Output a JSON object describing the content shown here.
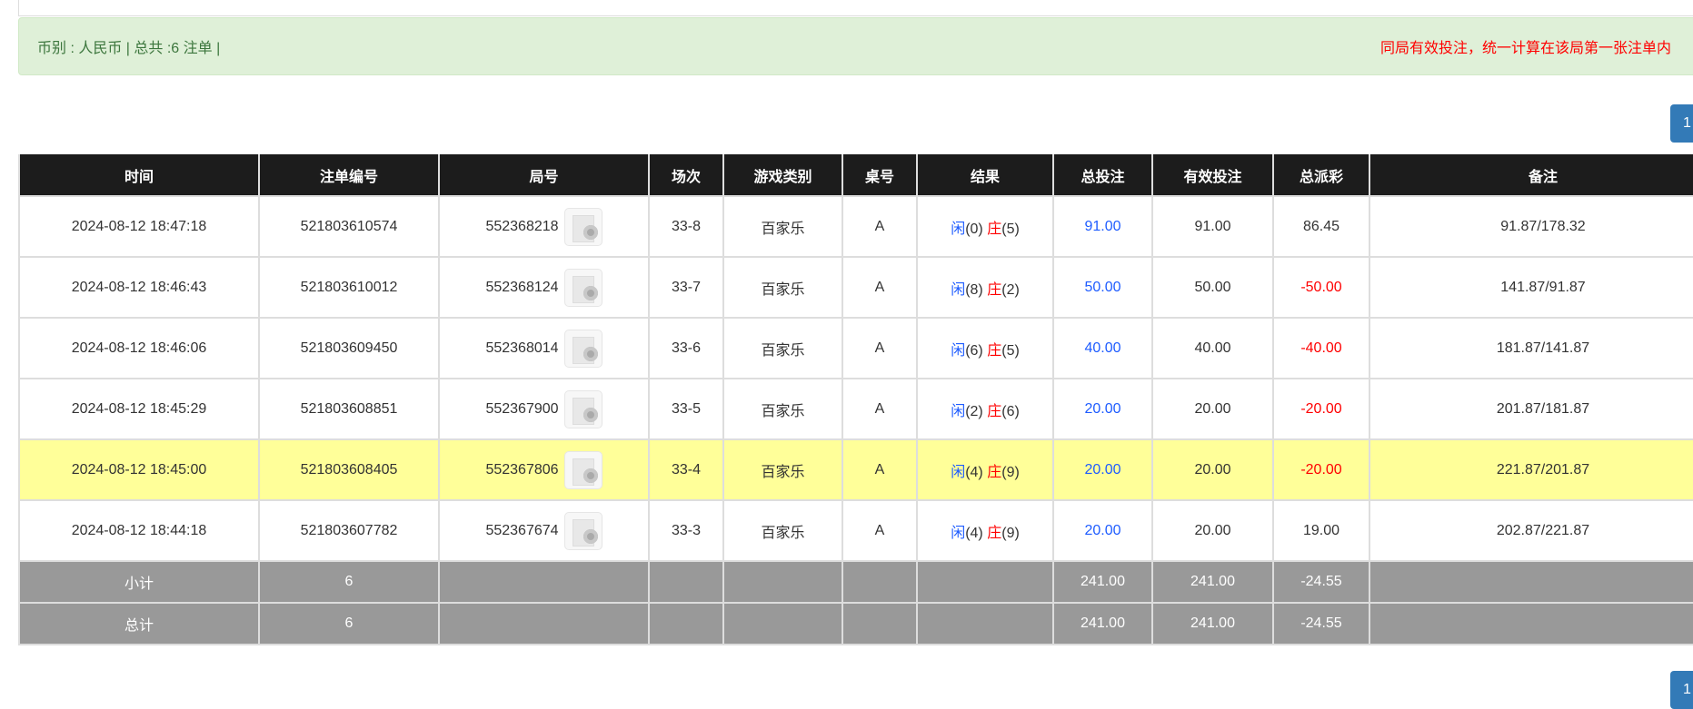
{
  "summary": {
    "left": "币别 : 人民币 | 总共 :6 注单 |",
    "right": "同局有效投注，统一计算在该局第一张注单内"
  },
  "pagination": {
    "page": "1"
  },
  "colors": {
    "blue": "#1e5cff",
    "red": "#ff0000",
    "highlight": "#ffff99",
    "header": "#1c1c1c",
    "summary_row": "#999999"
  },
  "table": {
    "headers": [
      "时间",
      "注单编号",
      "局号",
      "场次",
      "游戏类别",
      "桌号",
      "结果",
      "总投注",
      "有效投注",
      "总派彩",
      "备注"
    ],
    "rows": [
      {
        "time": "2024-08-12 18:47:18",
        "bet_id": "521803610574",
        "round": "552368218",
        "session": "33-8",
        "game": "百家乐",
        "table": "A",
        "player": "闲",
        "player_score": "(0)",
        "banker": "庄",
        "banker_score": "(5)",
        "total_bet": "91.00",
        "valid_bet": "91.00",
        "payout": "86.45",
        "payout_negative": false,
        "note": "91.87/178.32",
        "highlight": false
      },
      {
        "time": "2024-08-12 18:46:43",
        "bet_id": "521803610012",
        "round": "552368124",
        "session": "33-7",
        "game": "百家乐",
        "table": "A",
        "player": "闲",
        "player_score": "(8)",
        "banker": "庄",
        "banker_score": "(2)",
        "total_bet": "50.00",
        "valid_bet": "50.00",
        "payout": "-50.00",
        "payout_negative": true,
        "note": "141.87/91.87",
        "highlight": false
      },
      {
        "time": "2024-08-12 18:46:06",
        "bet_id": "521803609450",
        "round": "552368014",
        "session": "33-6",
        "game": "百家乐",
        "table": "A",
        "player": "闲",
        "player_score": "(6)",
        "banker": "庄",
        "banker_score": "(5)",
        "total_bet": "40.00",
        "valid_bet": "40.00",
        "payout": "-40.00",
        "payout_negative": true,
        "note": "181.87/141.87",
        "highlight": false
      },
      {
        "time": "2024-08-12 18:45:29",
        "bet_id": "521803608851",
        "round": "552367900",
        "session": "33-5",
        "game": "百家乐",
        "table": "A",
        "player": "闲",
        "player_score": "(2)",
        "banker": "庄",
        "banker_score": "(6)",
        "total_bet": "20.00",
        "valid_bet": "20.00",
        "payout": "-20.00",
        "payout_negative": true,
        "note": "201.87/181.87",
        "highlight": false
      },
      {
        "time": "2024-08-12 18:45:00",
        "bet_id": "521803608405",
        "round": "552367806",
        "session": "33-4",
        "game": "百家乐",
        "table": "A",
        "player": "闲",
        "player_score": "(4)",
        "banker": "庄",
        "banker_score": "(9)",
        "total_bet": "20.00",
        "valid_bet": "20.00",
        "payout": "-20.00",
        "payout_negative": true,
        "note": "221.87/201.87",
        "highlight": true
      },
      {
        "time": "2024-08-12 18:44:18",
        "bet_id": "521803607782",
        "round": "552367674",
        "session": "33-3",
        "game": "百家乐",
        "table": "A",
        "player": "闲",
        "player_score": "(4)",
        "banker": "庄",
        "banker_score": "(9)",
        "total_bet": "20.00",
        "valid_bet": "20.00",
        "payout": "19.00",
        "payout_negative": false,
        "note": "202.87/221.87",
        "highlight": false
      }
    ],
    "subtotal": {
      "label": "小计",
      "count": "6",
      "total_bet": "241.00",
      "valid_bet": "241.00",
      "payout": "-24.55"
    },
    "total": {
      "label": "总计",
      "count": "6",
      "total_bet": "241.00",
      "valid_bet": "241.00",
      "payout": "-24.55"
    }
  }
}
